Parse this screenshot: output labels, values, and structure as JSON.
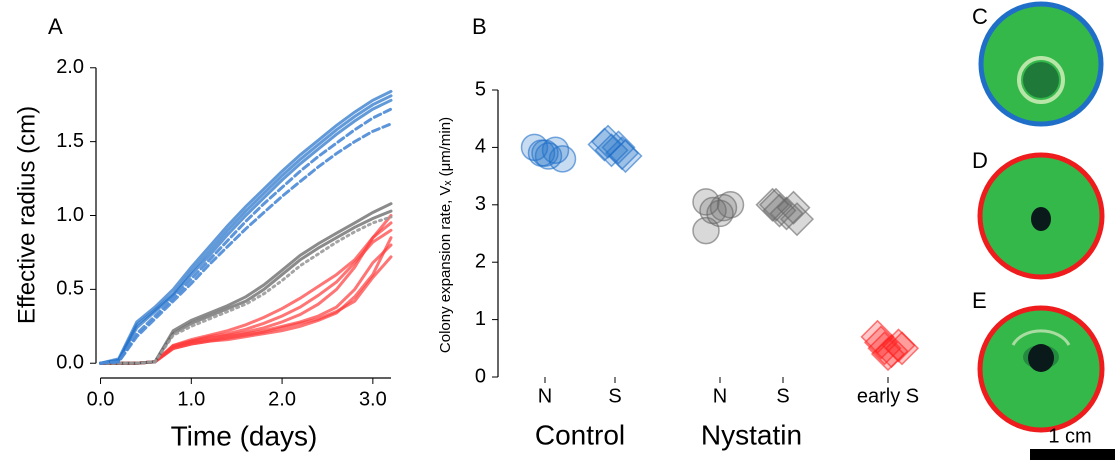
{
  "chart_data": [
    {
      "type": "line",
      "label": "A",
      "xlabel": "Time (days)",
      "ylabel": "Effective radius (cm)",
      "x": [
        0.0,
        0.2,
        0.4,
        0.6,
        0.8,
        1.0,
        1.2,
        1.4,
        1.6,
        1.8,
        2.0,
        2.2,
        2.4,
        2.6,
        2.8,
        3.0,
        3.2
      ],
      "xlim": [
        -0.05,
        3.2
      ],
      "ylim": [
        -0.1,
        2.1
      ],
      "xticks": [
        {
          "value": 0,
          "label": "0.0"
        },
        {
          "value": 1,
          "label": "1.0"
        },
        {
          "value": 2,
          "label": "2.0"
        },
        {
          "value": 3,
          "label": "3.0"
        }
      ],
      "yticks": [
        {
          "value": 0,
          "label": "0.0"
        },
        0.5,
        {
          "value": 1,
          "label": "1.0"
        },
        1.5,
        {
          "value": 2,
          "label": "2.0"
        }
      ],
      "series": [
        {
          "color": "#ff3b3b",
          "linestyle": "solid",
          "values": [
            0,
            0,
            0,
            0.01,
            0.12,
            0.15,
            0.17,
            0.19,
            0.21,
            0.24,
            0.28,
            0.33,
            0.4,
            0.5,
            0.65,
            0.85,
            1.0
          ]
        },
        {
          "color": "#ff3b3b",
          "linestyle": "solid",
          "values": [
            0,
            0,
            0,
            0.01,
            0.11,
            0.14,
            0.16,
            0.18,
            0.2,
            0.22,
            0.25,
            0.28,
            0.32,
            0.38,
            0.5,
            0.68,
            0.8
          ]
        },
        {
          "color": "#ff3b3b",
          "linestyle": "solid",
          "values": [
            0,
            0,
            0,
            0.01,
            0.1,
            0.13,
            0.15,
            0.17,
            0.19,
            0.21,
            0.24,
            0.27,
            0.3,
            0.35,
            0.42,
            0.58,
            0.72
          ]
        },
        {
          "color": "#ff3b3b",
          "linestyle": "solid",
          "values": [
            0,
            0,
            0,
            0.01,
            0.12,
            0.16,
            0.19,
            0.22,
            0.26,
            0.31,
            0.37,
            0.44,
            0.52,
            0.6,
            0.7,
            0.85,
            0.95
          ]
        },
        {
          "color": "#ff3b3b",
          "linestyle": "solid",
          "values": [
            0,
            0,
            0,
            0.01,
            0.11,
            0.15,
            0.18,
            0.2,
            0.23,
            0.27,
            0.32,
            0.38,
            0.46,
            0.55,
            0.68,
            0.82,
            0.9
          ]
        },
        {
          "color": "#ff3b3b",
          "linestyle": "solid",
          "values": [
            0,
            0,
            0,
            0.01,
            0.1,
            0.13,
            0.15,
            0.16,
            0.18,
            0.2,
            0.22,
            0.25,
            0.29,
            0.34,
            0.45,
            0.6,
            0.85
          ]
        },
        {
          "color": "#5a5a5a",
          "linestyle": "solid",
          "values": [
            0,
            0,
            0,
            0.01,
            0.22,
            0.29,
            0.34,
            0.39,
            0.45,
            0.53,
            0.63,
            0.73,
            0.81,
            0.88,
            0.95,
            1.02,
            1.08
          ]
        },
        {
          "color": "#5a5a5a",
          "linestyle": "solid",
          "values": [
            0,
            0,
            0,
            0.01,
            0.2,
            0.27,
            0.32,
            0.37,
            0.42,
            0.5,
            0.6,
            0.7,
            0.78,
            0.85,
            0.92,
            0.98,
            1.03
          ]
        },
        {
          "color": "#9a9a9a",
          "linestyle": "dotted",
          "values": [
            0,
            0,
            0,
            0.01,
            0.19,
            0.25,
            0.3,
            0.35,
            0.4,
            0.47,
            0.56,
            0.66,
            0.74,
            0.82,
            0.89,
            0.95,
            0.99
          ]
        },
        {
          "color": "#1f6fc9",
          "linestyle": "solid",
          "values": [
            0,
            0.03,
            0.28,
            0.38,
            0.5,
            0.65,
            0.79,
            0.93,
            1.06,
            1.18,
            1.3,
            1.41,
            1.51,
            1.61,
            1.7,
            1.78,
            1.84
          ]
        },
        {
          "color": "#1f6fc9",
          "linestyle": "solid",
          "values": [
            0,
            0.02,
            0.26,
            0.36,
            0.47,
            0.62,
            0.76,
            0.9,
            1.03,
            1.15,
            1.27,
            1.38,
            1.48,
            1.58,
            1.67,
            1.75,
            1.81
          ]
        },
        {
          "color": "#1f6fc9",
          "linestyle": "solid",
          "values": [
            0,
            0.02,
            0.24,
            0.35,
            0.46,
            0.6,
            0.73,
            0.87,
            1.0,
            1.12,
            1.24,
            1.35,
            1.45,
            1.55,
            1.64,
            1.72,
            1.78
          ]
        },
        {
          "color": "#4a8ad6",
          "linestyle": "dashed",
          "values": [
            0,
            0.01,
            0.2,
            0.32,
            0.44,
            0.57,
            0.7,
            0.83,
            0.96,
            1.08,
            1.19,
            1.3,
            1.4,
            1.49,
            1.58,
            1.66,
            1.72
          ]
        },
        {
          "color": "#4a8ad6",
          "linestyle": "dashed",
          "values": [
            0,
            0.01,
            0.18,
            0.3,
            0.42,
            0.54,
            0.67,
            0.79,
            0.91,
            1.02,
            1.13,
            1.23,
            1.33,
            1.42,
            1.5,
            1.57,
            1.62
          ]
        }
      ]
    },
    {
      "type": "scatter",
      "label": "B",
      "ylabel": "Colony expansion rate, Vₓ (μm/min)",
      "xlim": [
        0.5,
        6.4
      ],
      "ylim": [
        0,
        5
      ],
      "yticks": [
        0,
        1,
        2,
        3,
        4,
        5
      ],
      "xticks": [
        {
          "value": 1,
          "label": "N"
        },
        {
          "value": 2,
          "label": "S"
        },
        {
          "value": 3.5,
          "label": "N"
        },
        {
          "value": 4.4,
          "label": "S"
        },
        {
          "value": 5.9,
          "label": "early S"
        }
      ],
      "groups": [
        "Control",
        "Nystatin"
      ],
      "series": [
        {
          "color": "#1f6fc9",
          "marker": "circle",
          "x": [
            0.85,
            0.95,
            1.05,
            1.15,
            1.25,
            1.0
          ],
          "values": [
            4.0,
            3.9,
            3.85,
            3.95,
            3.8,
            3.9
          ]
        },
        {
          "color": "#1f6fc9",
          "marker": "diamond",
          "x": [
            1.85,
            1.95,
            2.05,
            2.15,
            1.9,
            2.1
          ],
          "values": [
            4.05,
            3.95,
            4.0,
            3.85,
            4.1,
            3.9
          ]
        },
        {
          "color": "#666666",
          "marker": "circle",
          "x": [
            3.3,
            3.4,
            3.3,
            3.55,
            3.65,
            3.5
          ],
          "values": [
            3.05,
            2.9,
            2.55,
            2.95,
            3.0,
            2.85
          ]
        },
        {
          "color": "#666666",
          "marker": "diamond",
          "x": [
            4.25,
            4.35,
            4.45,
            4.55,
            4.6,
            4.3
          ],
          "values": [
            3.0,
            2.9,
            2.85,
            2.95,
            2.75,
            3.0
          ]
        },
        {
          "color": "#ff2020",
          "marker": "diamond",
          "x": [
            5.75,
            5.85,
            5.95,
            6.05,
            5.9,
            5.8,
            6.1
          ],
          "values": [
            0.7,
            0.5,
            0.45,
            0.55,
            0.4,
            0.6,
            0.5
          ]
        }
      ]
    }
  ],
  "images": [
    {
      "label": "C",
      "border": "#1f6fc9"
    },
    {
      "label": "D",
      "border": "#ee1c1c"
    },
    {
      "label": "E",
      "border": "#ee1c1c"
    }
  ],
  "scale_bar": "1 cm"
}
